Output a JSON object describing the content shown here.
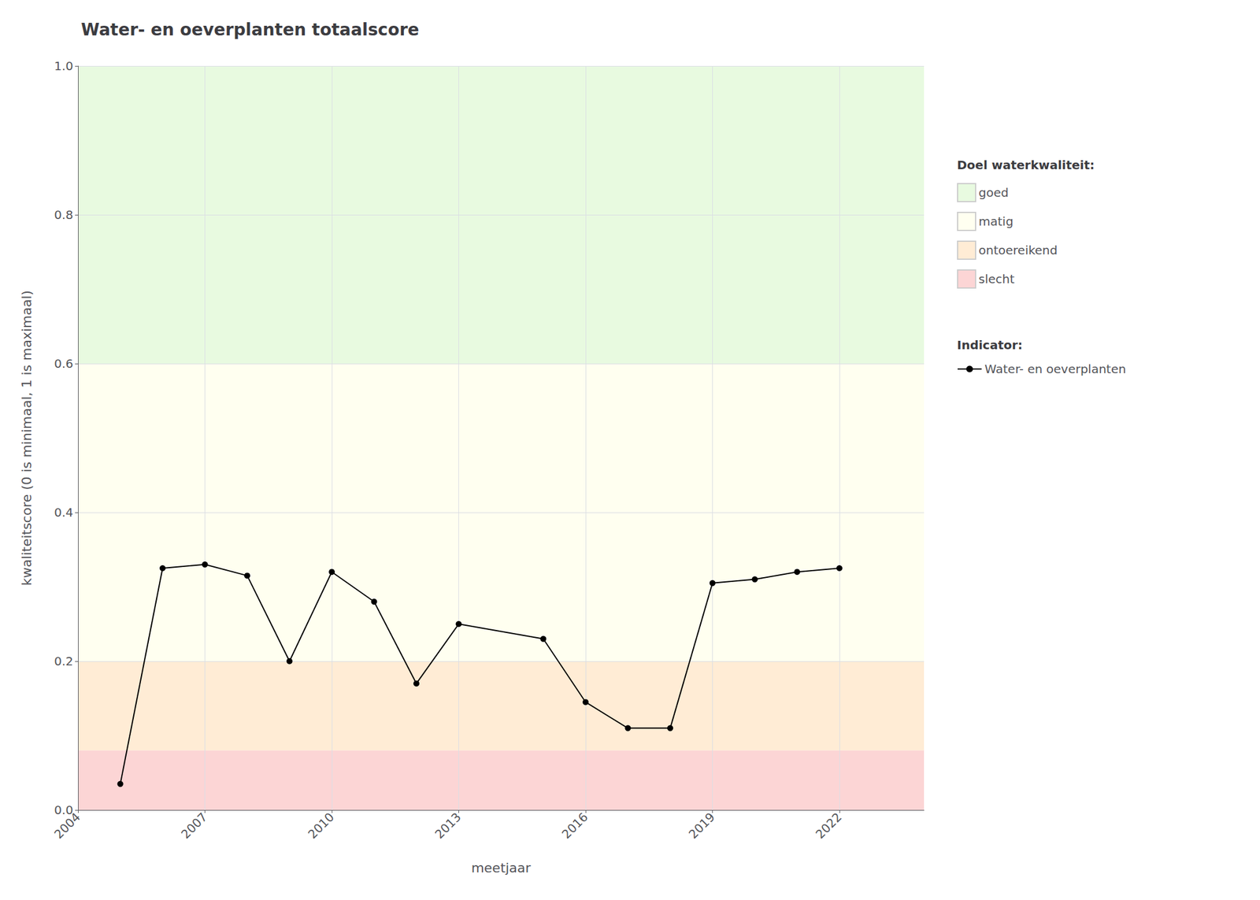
{
  "chart_data": {
    "type": "line",
    "title": "Water- en oeverplanten totaalscore",
    "xlabel": "meetjaar",
    "ylabel": "kwaliteitscore (0 is minimaal, 1 is maximaal)",
    "x": [
      2005,
      2006,
      2007,
      2008,
      2009,
      2010,
      2011,
      2012,
      2013,
      2015,
      2016,
      2017,
      2018,
      2019,
      2020,
      2021,
      2022
    ],
    "series": [
      {
        "name": "Water- en oeverplanten",
        "color": "#000000",
        "marker": "circle",
        "values": [
          0.035,
          0.325,
          0.33,
          0.315,
          0.2,
          0.32,
          0.28,
          0.17,
          0.25,
          0.23,
          0.145,
          0.11,
          0.11,
          0.305,
          0.31,
          0.32,
          0.325
        ]
      }
    ],
    "xlim": [
      2004,
      2024
    ],
    "xticks": [
      2004,
      2007,
      2010,
      2013,
      2016,
      2019,
      2022
    ],
    "ylim": [
      0.0,
      1.0
    ],
    "yticks": [
      {
        "value": 0.0,
        "label": "0.0"
      },
      0.2,
      0.4,
      0.6,
      0.8,
      {
        "value": 1.0,
        "label": "1.0"
      }
    ],
    "grid": true,
    "bands": [
      {
        "name": "goed",
        "ymin": 0.6,
        "ymax": 1.0,
        "color": "#e8fae0"
      },
      {
        "name": "matig",
        "ymin": 0.2,
        "ymax": 0.6,
        "color": "#fffff0"
      },
      {
        "name": "ontoereikend",
        "ymin": 0.08,
        "ymax": 0.2,
        "color": "#ffecd5"
      },
      {
        "name": "slecht",
        "ymin": 0.0,
        "ymax": 0.08,
        "color": "#fcd5d5"
      }
    ],
    "band_legend_title": "Doel waterkwaliteit:",
    "series_legend_title": "Indicator:"
  }
}
